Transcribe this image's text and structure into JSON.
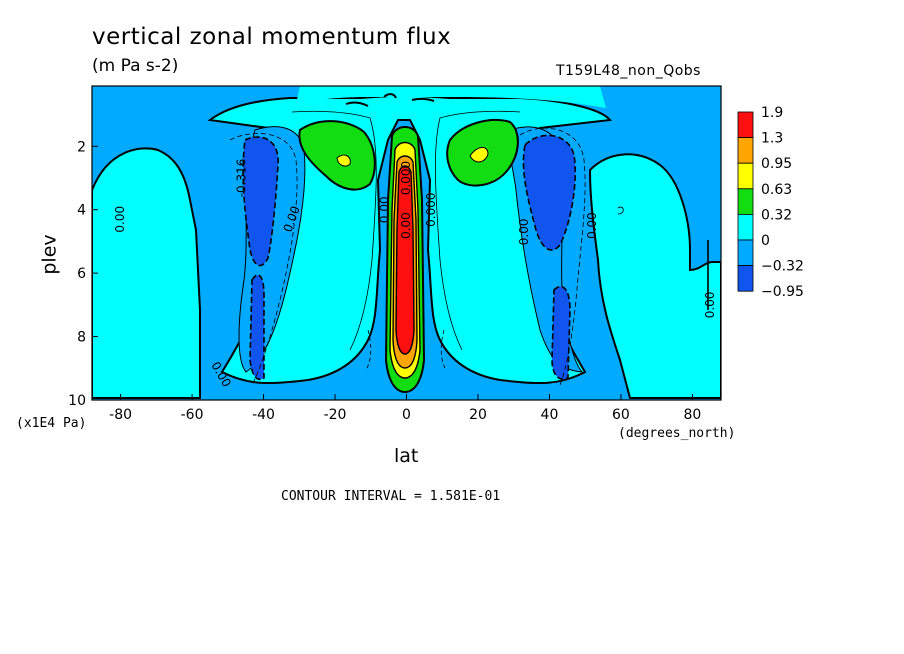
{
  "header": {
    "title": "vertical zonal momentum flux",
    "units": "(m Pa s-2)",
    "run_name": "T159L48_non_Qobs"
  },
  "footer": {
    "contour_interval": "CONTOUR INTERVAL = 1.581E-01"
  },
  "colors": {
    "red": "#ff1010",
    "orange": "#ffa500",
    "yellow": "#ffff00",
    "green": "#11dd11",
    "cyan": "#00ffff",
    "lightblue": "#00aaff",
    "blue": "#0f55ee",
    "white": "#ffffff",
    "edge": "#000000"
  },
  "chart_data": {
    "type": "heatmap",
    "title": "vertical zonal momentum flux",
    "xlabel": "lat",
    "xunits": "(degrees_north)",
    "ylabel": "plev",
    "yunits": "(x1E4 Pa)",
    "xlim": [
      -88,
      88
    ],
    "ylim": [
      10,
      0.1
    ],
    "y_inverted": true,
    "x_ticks": [
      -80,
      -60,
      -40,
      -20,
      0,
      20,
      40,
      60,
      80
    ],
    "y_ticks": [
      2,
      4,
      6,
      8,
      10
    ],
    "colorbar": {
      "levels": [
        "1.9",
        "1.3",
        "0.95",
        "0.63",
        "0.32",
        "0",
        "−0.32",
        "−0.95"
      ]
    },
    "contour_labels": [
      {
        "text": "-0.316",
        "lat": -46,
        "plev": 3.0,
        "rotation": -90
      },
      {
        "text": "0.00",
        "lat": -80,
        "plev": 4.3,
        "rotation": -90
      },
      {
        "text": "0.00",
        "lat": -32,
        "plev": 4.3,
        "rotation": -70
      },
      {
        "text": "0.00",
        "lat": -6,
        "plev": 4.0,
        "rotation": -90
      },
      {
        "text": "0.000",
        "lat": 0,
        "plev": 3.0,
        "rotation": -90
      },
      {
        "text": "0.00",
        "lat": 0,
        "plev": 4.5,
        "rotation": -90
      },
      {
        "text": "0.000",
        "lat": 7,
        "plev": 4.0,
        "rotation": -90
      },
      {
        "text": "0.00",
        "lat": 33,
        "plev": 4.7,
        "rotation": -90
      },
      {
        "text": "0.00",
        "lat": 52,
        "plev": 4.5,
        "rotation": -90
      },
      {
        "text": "0.00",
        "lat": -52,
        "plev": 9.2,
        "rotation": 60
      },
      {
        "text": "0.00",
        "lat": 85,
        "plev": 7.0,
        "rotation": -90
      }
    ]
  }
}
